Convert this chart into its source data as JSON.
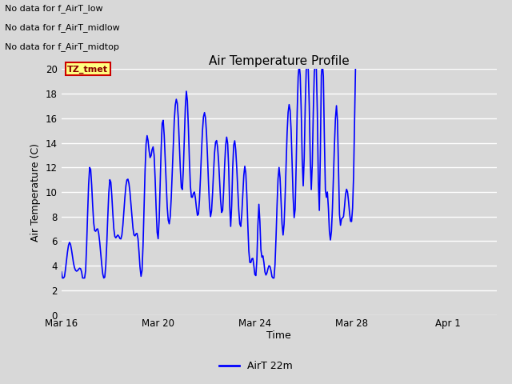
{
  "title": "Air Temperature Profile",
  "ylabel": "Air Temperature (C)",
  "xlabel": "Time",
  "legend_label": "AirT 22m",
  "line_color": "blue",
  "line_width": 1.2,
  "ylim": [
    0,
    20
  ],
  "yticks": [
    0,
    2,
    4,
    6,
    8,
    10,
    12,
    14,
    16,
    18,
    20
  ],
  "xtick_labels": [
    "Mar 16",
    "Mar 20",
    "Mar 24",
    "Mar 28",
    "Apr 1"
  ],
  "bg_color": "#d8d8d8",
  "annotations_text": [
    "No data for f_AirT_low",
    "No data for f_AirT_midlow",
    "No data for f_AirT_midtop"
  ],
  "tz_label": "TZ_tmet",
  "key_points": [
    [
      0,
      3.5
    ],
    [
      4,
      3.7
    ],
    [
      8,
      5.9
    ],
    [
      12,
      4.2
    ],
    [
      16,
      3.6
    ],
    [
      20,
      3.5
    ],
    [
      24,
      3.6
    ],
    [
      28,
      12.0
    ],
    [
      32,
      7.5
    ],
    [
      36,
      7.0
    ],
    [
      40,
      4.1
    ],
    [
      44,
      4.0
    ],
    [
      48,
      11.0
    ],
    [
      52,
      7.0
    ],
    [
      56,
      6.5
    ],
    [
      60,
      6.5
    ],
    [
      64,
      10.5
    ],
    [
      68,
      10.0
    ],
    [
      72,
      6.5
    ],
    [
      76,
      6.2
    ],
    [
      80,
      3.6
    ],
    [
      84,
      13.9
    ],
    [
      88,
      12.8
    ],
    [
      92,
      13.0
    ],
    [
      96,
      6.2
    ],
    [
      100,
      15.6
    ],
    [
      104,
      10.5
    ],
    [
      108,
      8.0
    ],
    [
      112,
      15.8
    ],
    [
      116,
      16.0
    ],
    [
      120,
      10.2
    ],
    [
      124,
      18.2
    ],
    [
      128,
      10.5
    ],
    [
      132,
      10.0
    ],
    [
      136,
      8.2
    ],
    [
      140,
      15.0
    ],
    [
      144,
      14.8
    ],
    [
      148,
      8.0
    ],
    [
      152,
      13.2
    ],
    [
      156,
      12.5
    ],
    [
      160,
      8.5
    ],
    [
      162,
      12.2
    ],
    [
      166,
      12.0
    ],
    [
      168,
      7.2
    ],
    [
      170,
      12.0
    ],
    [
      174,
      12.0
    ],
    [
      178,
      7.2
    ],
    [
      182,
      12.1
    ],
    [
      184,
      9.8
    ],
    [
      186,
      5.2
    ],
    [
      190,
      4.6
    ],
    [
      194,
      4.5
    ],
    [
      196,
      9.0
    ],
    [
      198,
      5.3
    ],
    [
      200,
      4.8
    ],
    [
      202,
      3.5
    ],
    [
      206,
      4.0
    ],
    [
      208,
      3.6
    ],
    [
      212,
      4.1
    ],
    [
      216,
      12.0
    ],
    [
      220,
      6.5
    ],
    [
      224,
      14.8
    ],
    [
      228,
      15.0
    ],
    [
      232,
      8.6
    ],
    [
      234,
      16.5
    ],
    [
      238,
      16.7
    ],
    [
      240,
      10.5
    ],
    [
      242,
      17.0
    ],
    [
      246,
      17.0
    ],
    [
      248,
      10.2
    ],
    [
      250,
      16.5
    ],
    [
      254,
      16.5
    ],
    [
      256,
      8.5
    ],
    [
      258,
      19.5
    ],
    [
      260,
      19.4
    ],
    [
      262,
      10.2
    ],
    [
      264,
      10.0
    ],
    [
      266,
      6.8
    ],
    [
      268,
      6.8
    ],
    [
      272,
      16.0
    ],
    [
      274,
      15.8
    ],
    [
      276,
      8.2
    ],
    [
      278,
      7.8
    ],
    [
      280,
      8.0
    ],
    [
      282,
      9.8
    ],
    [
      284,
      10.0
    ],
    [
      286,
      8.3
    ],
    [
      288,
      7.6
    ]
  ]
}
